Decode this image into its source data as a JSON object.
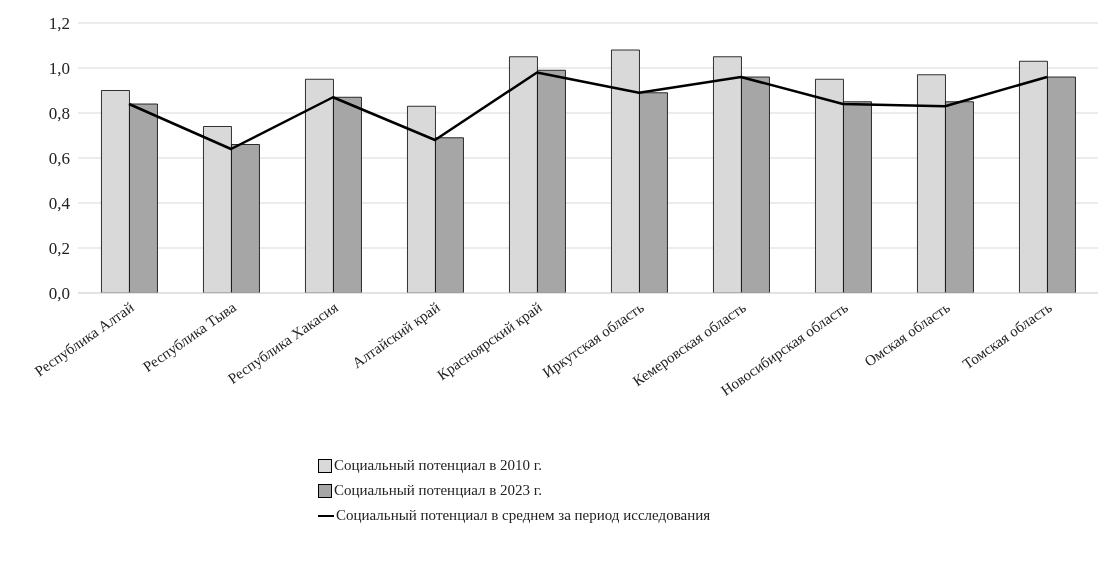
{
  "chart_data": {
    "type": "bar",
    "categories": [
      "Республика Алтай",
      "Республика Тыва",
      "Республика Хакасия",
      "Алтайский край",
      "Красноярский край",
      "Иркутская область",
      "Кемеровская область",
      "Новосибирская область",
      "Омская область",
      "Томская область"
    ],
    "series": [
      {
        "name": "Социальный потенциал в 2010 г.",
        "color": "#d9d9d9",
        "values": [
          0.9,
          0.74,
          0.95,
          0.83,
          1.05,
          1.08,
          1.05,
          0.95,
          0.97,
          1.03
        ]
      },
      {
        "name": "Социальный потенциал в 2023 г.",
        "color": "#a6a6a6",
        "values": [
          0.84,
          0.66,
          0.87,
          0.69,
          0.99,
          0.89,
          0.96,
          0.85,
          0.85,
          0.96
        ]
      },
      {
        "name": "Социальный потенциал в среднем за период исследования",
        "type": "line",
        "color": "#000000",
        "values": [
          0.84,
          0.64,
          0.87,
          0.68,
          0.98,
          0.89,
          0.96,
          0.84,
          0.83,
          0.96
        ]
      }
    ],
    "ylim": [
      0,
      1.2
    ],
    "yticks": [
      {
        "value": 0,
        "label": "0,0"
      },
      {
        "value": 0.2,
        "label": "0,2"
      },
      {
        "value": 0.4,
        "label": "0,4"
      },
      {
        "value": 0.6,
        "label": "0,6"
      },
      {
        "value": 0.8,
        "label": "0,8"
      },
      {
        "value": 1,
        "label": "1,0"
      },
      {
        "value": 1.2,
        "label": "1,2"
      }
    ],
    "grid": "y",
    "legend": "bottom",
    "marker": "none",
    "line_style": "solid"
  }
}
